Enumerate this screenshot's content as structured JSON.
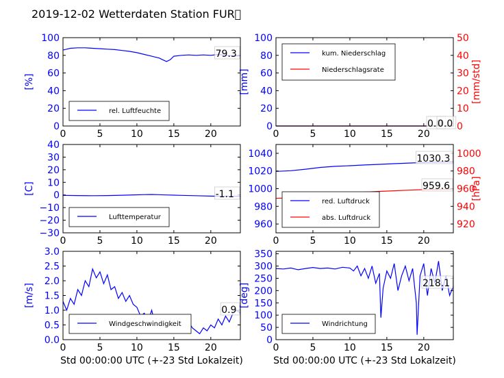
{
  "title": "2019-12-02 Wetterdaten Station FUR\u0000",
  "colors": {
    "primary": "#0000ff",
    "secondary": "#ff0000",
    "frame": "#000000"
  },
  "chart_data": [
    {
      "id": "humidity",
      "type": "line",
      "ylabel": "[%]",
      "ylim": [
        0,
        100
      ],
      "yticks": [
        0,
        20,
        40,
        60,
        80,
        100
      ],
      "xlim": [
        0,
        24
      ],
      "xticks": [
        0,
        5,
        10,
        15,
        20
      ],
      "legend": [
        "rel. Luftfeuchte"
      ],
      "legend_position": "lower-left",
      "annotations": [
        "79.3"
      ],
      "series": [
        {
          "name": "rel. Luftfeuchte",
          "color": "#0000ff",
          "x": [
            0,
            0.5,
            1,
            2,
            3,
            4,
            5,
            6,
            7,
            8,
            9,
            10,
            11,
            12,
            12.5,
            13,
            13.5,
            14,
            14.5,
            15,
            16,
            17,
            18,
            19,
            20,
            21,
            22,
            23,
            24
          ],
          "y": [
            86,
            87,
            88,
            88.5,
            88.5,
            88,
            87.5,
            87,
            86.5,
            85.5,
            84.5,
            83,
            81,
            79,
            78,
            77,
            75,
            73,
            75,
            79,
            80,
            80.5,
            80,
            80.5,
            80,
            81,
            80,
            79.5,
            79.3
          ]
        }
      ]
    },
    {
      "id": "precipitation",
      "type": "line",
      "ylabel": "[mm]",
      "ylim": [
        0,
        100
      ],
      "yticks": [
        0,
        20,
        40,
        60,
        80,
        100
      ],
      "y2label": "[mm/std]",
      "y2lim": [
        0,
        50
      ],
      "y2ticks": [
        0,
        10,
        20,
        30,
        40,
        50
      ],
      "xlim": [
        0,
        24
      ],
      "xticks": [
        0,
        5,
        10,
        15,
        20
      ],
      "legend": [
        "kum. Niederschlag",
        "Niederschlagsrate"
      ],
      "legend_position": "upper-left",
      "annotations": [
        "0.0",
        "0.0"
      ],
      "series": [
        {
          "name": "kum. Niederschlag",
          "color": "#0000ff",
          "axis": "left",
          "x": [
            0,
            24
          ],
          "y": [
            0,
            0
          ]
        },
        {
          "name": "Niederschlagsrate",
          "color": "#ff0000",
          "axis": "right",
          "x": [
            0,
            24
          ],
          "y": [
            0,
            0
          ]
        }
      ]
    },
    {
      "id": "temperature",
      "type": "line",
      "ylabel": "[C]",
      "ylim": [
        -30,
        40
      ],
      "yticks": [
        -30,
        -20,
        -10,
        0,
        10,
        20,
        30,
        40
      ],
      "xlim": [
        0,
        24
      ],
      "xticks": [
        0,
        5,
        10,
        15,
        20
      ],
      "legend": [
        "Lufttemperatur"
      ],
      "legend_position": "lower-left",
      "annotations": [
        "-1.1"
      ],
      "series": [
        {
          "name": "Lufttemperatur",
          "color": "#0000ff",
          "x": [
            0,
            2,
            4,
            6,
            8,
            10,
            11,
            12,
            13,
            14,
            16,
            18,
            20,
            22,
            24
          ],
          "y": [
            -0.3,
            -0.5,
            -0.6,
            -0.5,
            -0.2,
            0.1,
            0.3,
            0.4,
            0.2,
            0,
            -0.3,
            -0.6,
            -0.9,
            -1.0,
            -1.1
          ]
        }
      ]
    },
    {
      "id": "pressure",
      "type": "line",
      "ylabel": "",
      "ylim": [
        950,
        1050
      ],
      "yticks": [
        960,
        980,
        1000,
        1020,
        1040
      ],
      "y2label": "[hPa]",
      "y2lim": [
        910,
        1010
      ],
      "y2ticks": [
        920,
        940,
        960,
        980,
        1000
      ],
      "xlim": [
        0,
        24
      ],
      "xticks": [
        0,
        5,
        10,
        15,
        20
      ],
      "legend": [
        "red. Luftdruck",
        "abs. Luftdruck"
      ],
      "legend_position": "lower-left",
      "annotations": [
        "1030.3",
        "959.6"
      ],
      "series": [
        {
          "name": "red. Luftdruck",
          "color": "#0000ff",
          "axis": "left",
          "x": [
            0,
            2,
            4,
            6,
            8,
            10,
            12,
            14,
            16,
            18,
            20,
            22,
            24
          ],
          "y": [
            1019.5,
            1020.3,
            1022,
            1024,
            1025.3,
            1026,
            1026.8,
            1027.5,
            1028.3,
            1029,
            1029.6,
            1030.1,
            1030.3
          ]
        },
        {
          "name": "abs. Luftdruck",
          "color": "#ff0000",
          "axis": "right",
          "x": [
            0,
            2,
            4,
            6,
            8,
            10,
            12,
            14,
            16,
            18,
            20,
            22,
            24
          ],
          "y": [
            949,
            949.7,
            951.5,
            953.4,
            954.5,
            955.3,
            956.1,
            956.9,
            957.6,
            958.3,
            958.9,
            959.4,
            959.6
          ]
        }
      ]
    },
    {
      "id": "wind_speed",
      "type": "line",
      "ylabel": "[m/s]",
      "ylim": [
        0,
        3
      ],
      "yticks": [
        0.0,
        0.5,
        1.0,
        1.5,
        2.0,
        2.5,
        3.0
      ],
      "ytick_labels": [
        "0.0",
        "0.5",
        "1.0",
        "1.5",
        "2.0",
        "2.5",
        "3.0"
      ],
      "xlabel": "Std 00:00:00 UTC (+-23 Std Lokalzeit)",
      "xlim": [
        0,
        24
      ],
      "xticks": [
        0,
        5,
        10,
        15,
        20
      ],
      "legend": [
        "Windgeschwindigkeit"
      ],
      "legend_position": "lower-left",
      "annotations": [
        "0.9"
      ],
      "series": [
        {
          "name": "Windgeschwindigkeit",
          "color": "#0000ff",
          "x": [
            0,
            0.5,
            1,
            1.5,
            2,
            2.5,
            3,
            3.5,
            4,
            4.5,
            5,
            5.5,
            6,
            6.5,
            7,
            7.5,
            8,
            8.5,
            9,
            9.5,
            10,
            10.5,
            11,
            11.5,
            12,
            12.5,
            13,
            13.5,
            14,
            14.5,
            15,
            15.5,
            16,
            16.5,
            17,
            17.5,
            18,
            18.5,
            19,
            19.5,
            20,
            20.5,
            21,
            21.5,
            22,
            22.5,
            23,
            23.5,
            24
          ],
          "y": [
            1.3,
            1.0,
            1.4,
            1.2,
            1.7,
            1.5,
            2.0,
            1.8,
            2.4,
            2.1,
            2.3,
            1.9,
            2.2,
            1.7,
            1.8,
            1.4,
            1.6,
            1.3,
            1.5,
            1.2,
            1.1,
            0.8,
            0.9,
            0.6,
            1.0,
            0.5,
            0.7,
            0.4,
            0.6,
            0.7,
            0.5,
            0.4,
            0.8,
            0.5,
            0.6,
            0.4,
            0.3,
            0.2,
            0.4,
            0.3,
            0.5,
            0.4,
            0.7,
            0.5,
            0.8,
            0.6,
            0.9,
            1.0,
            0.9
          ]
        }
      ]
    },
    {
      "id": "wind_direction",
      "type": "line",
      "ylabel": "[deg]",
      "ylim": [
        0,
        360
      ],
      "yticks": [
        0,
        50,
        100,
        150,
        200,
        250,
        300,
        350
      ],
      "xlabel": "Std 00:00:00 UTC (+-23 Std Lokalzeit)",
      "xlim": [
        0,
        24
      ],
      "xticks": [
        0,
        5,
        10,
        15,
        20
      ],
      "legend": [
        "Windrichtung"
      ],
      "legend_position": "lower-left",
      "annotations": [
        "218.1"
      ],
      "series": [
        {
          "name": "Windrichtung",
          "color": "#0000ff",
          "x": [
            0,
            1,
            2,
            3,
            4,
            5,
            6,
            7,
            8,
            9,
            10,
            10.5,
            11,
            11.5,
            12,
            12.5,
            13,
            13.5,
            14,
            14.2,
            14.5,
            15,
            15.5,
            16,
            16.5,
            17,
            17.5,
            18,
            18.5,
            19,
            19.1,
            19.5,
            20,
            20.5,
            21,
            21.5,
            22,
            22.5,
            23,
            23.5,
            24
          ],
          "y": [
            290,
            288,
            292,
            285,
            290,
            294,
            290,
            292,
            288,
            295,
            292,
            280,
            300,
            260,
            290,
            250,
            300,
            230,
            270,
            90,
            210,
            280,
            250,
            310,
            200,
            260,
            300,
            240,
            290,
            150,
            20,
            260,
            310,
            180,
            290,
            230,
            320,
            200,
            260,
            180,
            218
          ]
        }
      ]
    }
  ]
}
